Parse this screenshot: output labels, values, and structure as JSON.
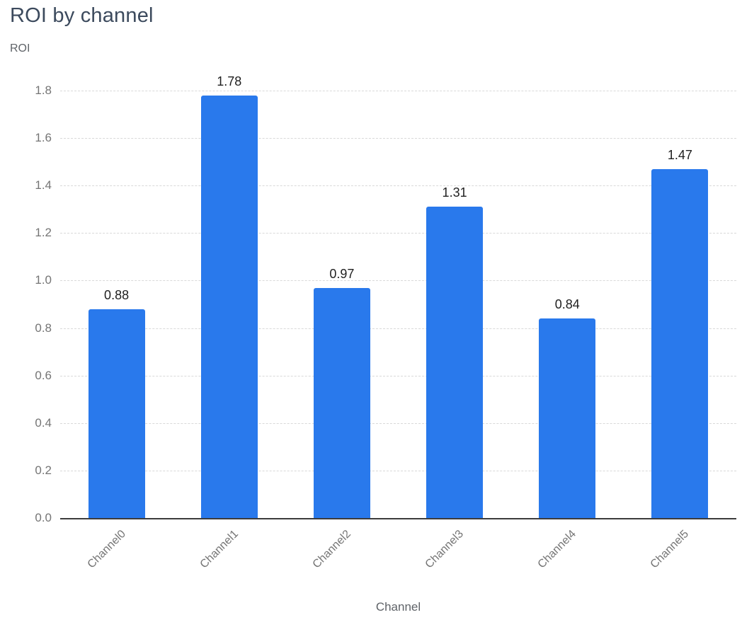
{
  "chart_data": {
    "type": "bar",
    "title": "ROI by channel",
    "xlabel": "Channel",
    "ylabel": "ROI",
    "categories": [
      "Channel0",
      "Channel1",
      "Channel2",
      "Channel3",
      "Channel4",
      "Channel5"
    ],
    "values": [
      0.88,
      1.78,
      0.97,
      1.31,
      0.84,
      1.47
    ],
    "value_labels": [
      "0.88",
      "1.78",
      "0.97",
      "1.31",
      "0.84",
      "1.47"
    ],
    "ylim": [
      0,
      1.8
    ],
    "ytick_step": 0.2,
    "yticks": [
      "0.0",
      "0.2",
      "0.4",
      "0.6",
      "0.8",
      "1.0",
      "1.2",
      "1.4",
      "1.6",
      "1.8"
    ],
    "grid": "horizontal dashed",
    "legend_position": "none",
    "colors": {
      "bar": "#2979ec",
      "title": "#3c4a5d",
      "axis_text": "#757575",
      "axis_title_text": "#5f6368",
      "value_label": "#1f1f1f",
      "gridline": "#d9d9d9",
      "axis_line": "#3c3c3c"
    }
  }
}
